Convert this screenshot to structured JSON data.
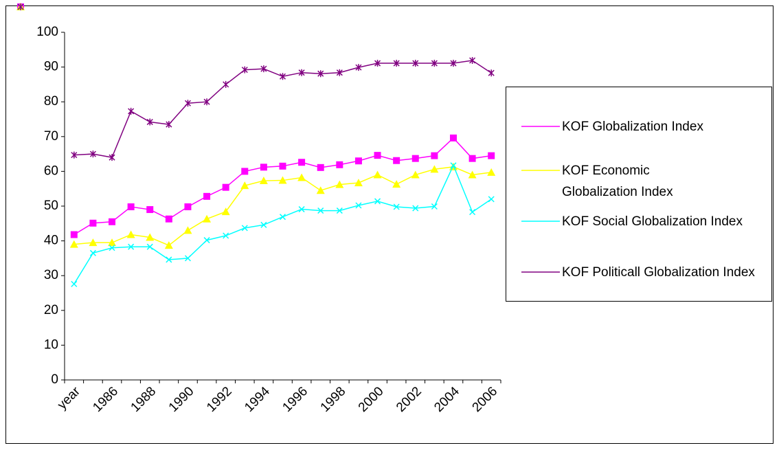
{
  "chart_data": {
    "type": "line",
    "categories": [
      "year",
      null,
      "1986",
      null,
      "1988",
      null,
      "1990",
      null,
      "1992",
      null,
      "1994",
      null,
      "1996",
      null,
      "1998",
      null,
      "2000",
      null,
      "2002",
      null,
      "2004",
      null,
      "2006"
    ],
    "series": [
      {
        "name": "KOF Globalization Index",
        "color": "#ff00ff",
        "marker": "square",
        "values": [
          41.8,
          45.1,
          45.5,
          49.8,
          49,
          46.3,
          49.8,
          52.8,
          55.4,
          60,
          61.2,
          61.5,
          62.6,
          61.1,
          61.9,
          63,
          64.6,
          63.1,
          63.7,
          64.5,
          69.6,
          63.7,
          64.5
        ]
      },
      {
        "name": "KOF Economic Globalization Index",
        "color": "#ffff00",
        "marker": "triangle",
        "values": [
          39,
          39.5,
          39.5,
          41.8,
          41,
          38.7,
          43,
          46.3,
          48.4,
          55.9,
          57.3,
          57.4,
          58.2,
          54.5,
          56.2,
          56.7,
          59,
          56.3,
          59,
          60.6,
          61.3,
          59,
          59.7
        ]
      },
      {
        "name": "KOF Social Globalization Index",
        "color": "#00ffff",
        "marker": "x",
        "values": [
          27.6,
          36.5,
          38,
          38.3,
          38.3,
          34.6,
          35,
          40.2,
          41.5,
          43.7,
          44.6,
          46.9,
          49.1,
          48.7,
          48.7,
          50.2,
          51.4,
          49.8,
          49.4,
          49.9,
          61.7,
          48.3,
          52
        ]
      },
      {
        "name": "KOF Politicall Globalization Index",
        "color": "#800080",
        "marker": "star",
        "values": [
          64.7,
          65,
          64,
          77.3,
          74.2,
          73.5,
          79.6,
          80,
          85,
          89.2,
          89.5,
          87.3,
          88.4,
          88.1,
          88.4,
          89.9,
          91.1,
          91.1,
          91.1,
          91.1,
          91.1,
          91.9,
          88.3
        ]
      }
    ],
    "ylim": [
      0,
      100
    ],
    "yticks": [
      0,
      10,
      20,
      30,
      40,
      50,
      60,
      70,
      80,
      90,
      100
    ],
    "grid": false,
    "legend": "right"
  }
}
